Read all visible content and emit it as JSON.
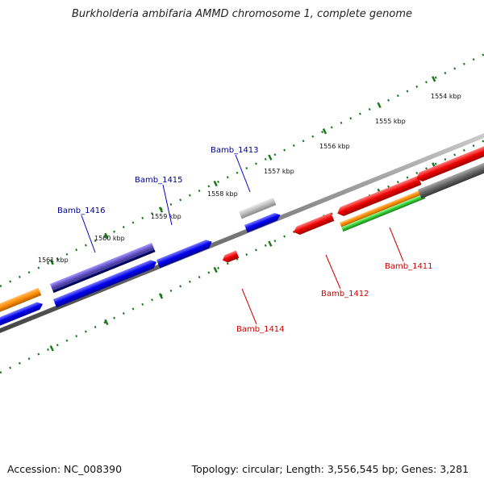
{
  "title": "Burkholderia ambifaria AMMD chromosome 1, complete genome",
  "footer": {
    "accession": "Accession: NC_008390",
    "summary": "Topology: circular; Length: 3,556,545 bp; Genes: 3,281"
  },
  "ruler_labels": [
    "1554 kbp",
    "1555 kbp",
    "1556 kbp",
    "1557 kbp",
    "1558 kbp",
    "1559 kbp",
    "1560 kbp",
    "1561 kbp"
  ],
  "gene_labels": [
    {
      "name": "Bamb_1413",
      "strand": "forward"
    },
    {
      "name": "Bamb_1415",
      "strand": "forward"
    },
    {
      "name": "Bamb_1416",
      "strand": "forward"
    },
    {
      "name": "Bamb_1411",
      "strand": "reverse"
    },
    {
      "name": "Bamb_1412",
      "strand": "reverse"
    },
    {
      "name": "Bamb_1414",
      "strand": "reverse"
    }
  ],
  "colors": {
    "forward_label": "#00008b",
    "reverse_label": "#cc0000",
    "ruler_tick": "#1a7a1a",
    "backbone": "#777777",
    "cds_forward": "#0000ee",
    "cds_reverse": "#ee0000",
    "rna_purple": "#6a5acd",
    "rna_navy": "#000066",
    "orange": "#ff8c00",
    "green": "#33cc33",
    "gray": "#666666",
    "light_gray": "#bbbbbb"
  }
}
